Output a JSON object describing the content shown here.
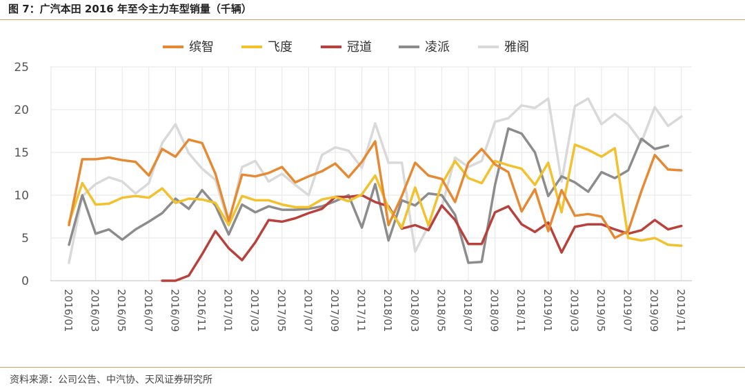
{
  "header": {
    "title": "图 7：广汽本田 2016 年至今主力车型销量（千辆）"
  },
  "footer": {
    "source": "资料来源：公司公告、中汽协、天风证券研究所"
  },
  "chart_data": {
    "type": "line",
    "title": "图 7：广汽本田 2016 年至今主力车型销量（千辆）",
    "xlabel": "",
    "ylabel": "",
    "ylim": [
      0,
      25
    ],
    "yticks": [
      0,
      5,
      10,
      15,
      20,
      25
    ],
    "grid": true,
    "legend_position": "top",
    "x": [
      "2016/01",
      "2016/02",
      "2016/03",
      "2016/04",
      "2016/05",
      "2016/06",
      "2016/07",
      "2016/08",
      "2016/09",
      "2016/10",
      "2016/11",
      "2016/12",
      "2017/01",
      "2017/02",
      "2017/03",
      "2017/04",
      "2017/05",
      "2017/06",
      "2017/07",
      "2017/08",
      "2017/09",
      "2017/10",
      "2017/11",
      "2017/12",
      "2018/01",
      "2018/02",
      "2018/03",
      "2018/04",
      "2018/05",
      "2018/06",
      "2018/07",
      "2018/08",
      "2018/09",
      "2018/10",
      "2018/11",
      "2018/12",
      "2019/01",
      "2019/02",
      "2019/03",
      "2019/04",
      "2019/05",
      "2019/06",
      "2019/07",
      "2019/08",
      "2019/09",
      "2019/10",
      "2019/11"
    ],
    "x_tick_labels": [
      "2016/01",
      "2016/03",
      "2016/05",
      "2016/07",
      "2016/09",
      "2016/11",
      "2017/01",
      "2017/03",
      "2017/05",
      "2017/07",
      "2017/09",
      "2017/11",
      "2018/01",
      "2018/03",
      "2018/05",
      "2018/07",
      "2018/09",
      "2018/11",
      "2019/01",
      "2019/03",
      "2019/05",
      "2019/07",
      "2019/09",
      "2019/11"
    ],
    "series": [
      {
        "name": "缤智",
        "color": "#e58a32",
        "values": [
          6.5,
          14.2,
          14.2,
          14.4,
          14.1,
          13.9,
          12.3,
          15.4,
          14.5,
          16.5,
          16.1,
          12.5,
          7.0,
          12.4,
          12.2,
          12.6,
          13.3,
          11.5,
          12.2,
          12.8,
          13.7,
          12.1,
          13.9,
          16.3,
          6.5,
          9.9,
          13.8,
          12.3,
          11.9,
          9.2,
          13.8,
          15.4,
          13.6,
          12.7,
          8.1,
          10.7,
          5.8,
          10.6,
          7.6,
          7.8,
          7.5,
          5.0,
          5.8,
          10.5,
          14.7,
          13.0,
          12.9
        ]
      },
      {
        "name": "飞度",
        "color": "#f2c12e",
        "values": [
          6.8,
          11.4,
          8.9,
          9.0,
          9.7,
          9.9,
          9.7,
          10.8,
          9.1,
          9.6,
          9.5,
          9.1,
          6.5,
          9.9,
          9.4,
          9.4,
          8.9,
          8.6,
          8.6,
          9.5,
          9.8,
          9.3,
          10.1,
          12.3,
          8.5,
          6.2,
          10.9,
          6.5,
          11.3,
          14.0,
          12.0,
          11.4,
          14.0,
          13.5,
          13.1,
          11.2,
          13.8,
          8.0,
          15.9,
          15.3,
          14.5,
          15.5,
          5.0,
          4.7,
          5.0,
          4.2,
          4.1
        ]
      },
      {
        "name": "冠道",
        "color": "#b8423b",
        "values": [
          null,
          null,
          null,
          null,
          null,
          null,
          null,
          0.0,
          0.0,
          0.6,
          3.1,
          5.8,
          3.8,
          2.4,
          4.5,
          7.1,
          6.9,
          7.3,
          7.9,
          8.4,
          9.8,
          9.8,
          10.0,
          9.2,
          8.7,
          6.1,
          6.5,
          5.9,
          8.8,
          7.1,
          4.3,
          4.3,
          8.0,
          8.7,
          6.6,
          5.7,
          6.8,
          3.3,
          6.3,
          6.6,
          6.6,
          6.0,
          5.5,
          5.9,
          7.1,
          6.0,
          6.4
        ]
      },
      {
        "name": "凌派",
        "color": "#8c8c8c",
        "values": [
          4.2,
          10.0,
          5.5,
          6.0,
          4.8,
          6.0,
          6.9,
          7.9,
          9.6,
          8.4,
          10.6,
          8.8,
          5.4,
          8.9,
          8.0,
          8.7,
          8.3,
          8.3,
          8.4,
          8.7,
          9.3,
          10.0,
          6.2,
          11.3,
          4.7,
          9.4,
          8.8,
          10.2,
          10.0,
          7.7,
          2.1,
          2.2,
          11.2,
          17.8,
          17.2,
          15.0,
          9.9,
          12.2,
          11.5,
          10.4,
          12.7,
          12.0,
          12.9,
          16.6,
          15.4,
          15.8,
          null
        ]
      },
      {
        "name": "雅阁",
        "color": "#d9d9d9",
        "values": [
          2.1,
          9.9,
          11.3,
          12.1,
          11.6,
          10.2,
          11.4,
          16.1,
          18.3,
          14.9,
          13.1,
          11.8,
          6.6,
          13.3,
          14.0,
          11.6,
          12.5,
          11.2,
          10.0,
          14.7,
          15.6,
          15.2,
          13.2,
          18.4,
          13.8,
          13.8,
          3.4,
          6.4,
          8.6,
          14.4,
          13.3,
          14.0,
          18.6,
          19.0,
          20.5,
          20.2,
          21.3,
          11.6,
          20.4,
          21.3,
          18.3,
          19.5,
          18.3,
          16.2,
          20.3,
          18.1,
          19.2
        ]
      }
    ]
  }
}
